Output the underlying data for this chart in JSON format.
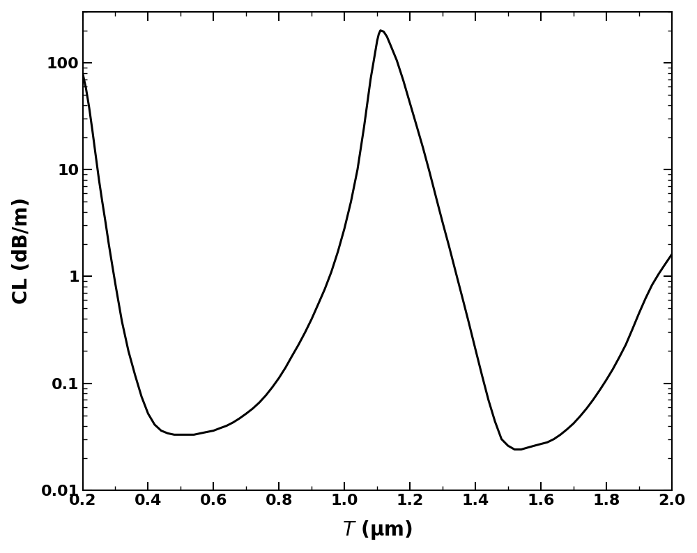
{
  "x": [
    0.2,
    0.21,
    0.22,
    0.23,
    0.24,
    0.25,
    0.26,
    0.27,
    0.28,
    0.29,
    0.3,
    0.32,
    0.34,
    0.36,
    0.38,
    0.4,
    0.42,
    0.44,
    0.46,
    0.48,
    0.5,
    0.52,
    0.54,
    0.56,
    0.58,
    0.6,
    0.62,
    0.64,
    0.66,
    0.68,
    0.7,
    0.72,
    0.74,
    0.76,
    0.78,
    0.8,
    0.82,
    0.84,
    0.86,
    0.88,
    0.9,
    0.92,
    0.94,
    0.96,
    0.98,
    1.0,
    1.02,
    1.04,
    1.06,
    1.08,
    1.095,
    1.1,
    1.105,
    1.11,
    1.12,
    1.13,
    1.14,
    1.16,
    1.18,
    1.2,
    1.22,
    1.24,
    1.26,
    1.28,
    1.3,
    1.32,
    1.34,
    1.36,
    1.38,
    1.4,
    1.42,
    1.44,
    1.46,
    1.48,
    1.5,
    1.52,
    1.54,
    1.56,
    1.58,
    1.6,
    1.62,
    1.64,
    1.66,
    1.68,
    1.7,
    1.72,
    1.74,
    1.76,
    1.78,
    1.8,
    1.82,
    1.84,
    1.86,
    1.88,
    1.9,
    1.92,
    1.94,
    1.96,
    1.98,
    2.0
  ],
  "y": [
    80.0,
    58.0,
    38.0,
    23.0,
    13.5,
    8.0,
    5.0,
    3.2,
    2.0,
    1.3,
    0.85,
    0.38,
    0.2,
    0.12,
    0.075,
    0.052,
    0.041,
    0.036,
    0.034,
    0.033,
    0.033,
    0.033,
    0.033,
    0.034,
    0.035,
    0.036,
    0.038,
    0.04,
    0.043,
    0.047,
    0.052,
    0.058,
    0.066,
    0.077,
    0.092,
    0.112,
    0.14,
    0.18,
    0.23,
    0.3,
    0.4,
    0.55,
    0.76,
    1.1,
    1.7,
    2.8,
    5.0,
    10.0,
    25.0,
    70.0,
    130.0,
    160.0,
    185.0,
    200.0,
    195.0,
    175.0,
    148.0,
    105.0,
    68.0,
    42.0,
    26.0,
    16.0,
    9.5,
    5.5,
    3.2,
    1.9,
    1.1,
    0.64,
    0.37,
    0.21,
    0.12,
    0.07,
    0.044,
    0.03,
    0.026,
    0.024,
    0.024,
    0.025,
    0.026,
    0.027,
    0.028,
    0.03,
    0.033,
    0.037,
    0.042,
    0.049,
    0.058,
    0.07,
    0.086,
    0.107,
    0.135,
    0.175,
    0.23,
    0.32,
    0.45,
    0.62,
    0.83,
    1.05,
    1.3,
    1.6
  ],
  "xlim": [
    0.2,
    2.0
  ],
  "ylim": [
    0.01,
    300
  ],
  "xlabel": "$T$ (μm)",
  "ylabel": "CL (dB/m)",
  "xticks": [
    0.2,
    0.4,
    0.6,
    0.8,
    1.0,
    1.2,
    1.4,
    1.6,
    1.8,
    2.0
  ],
  "ytick_values": [
    0.01,
    0.1,
    1,
    10,
    100
  ],
  "ytick_labels": [
    "0.01",
    "0.1",
    "1",
    "10",
    "100"
  ],
  "line_color": "#000000",
  "line_width": 2.2,
  "background_color": "#ffffff",
  "tick_fontsize": 16,
  "label_fontsize": 20,
  "font_weight": "bold"
}
